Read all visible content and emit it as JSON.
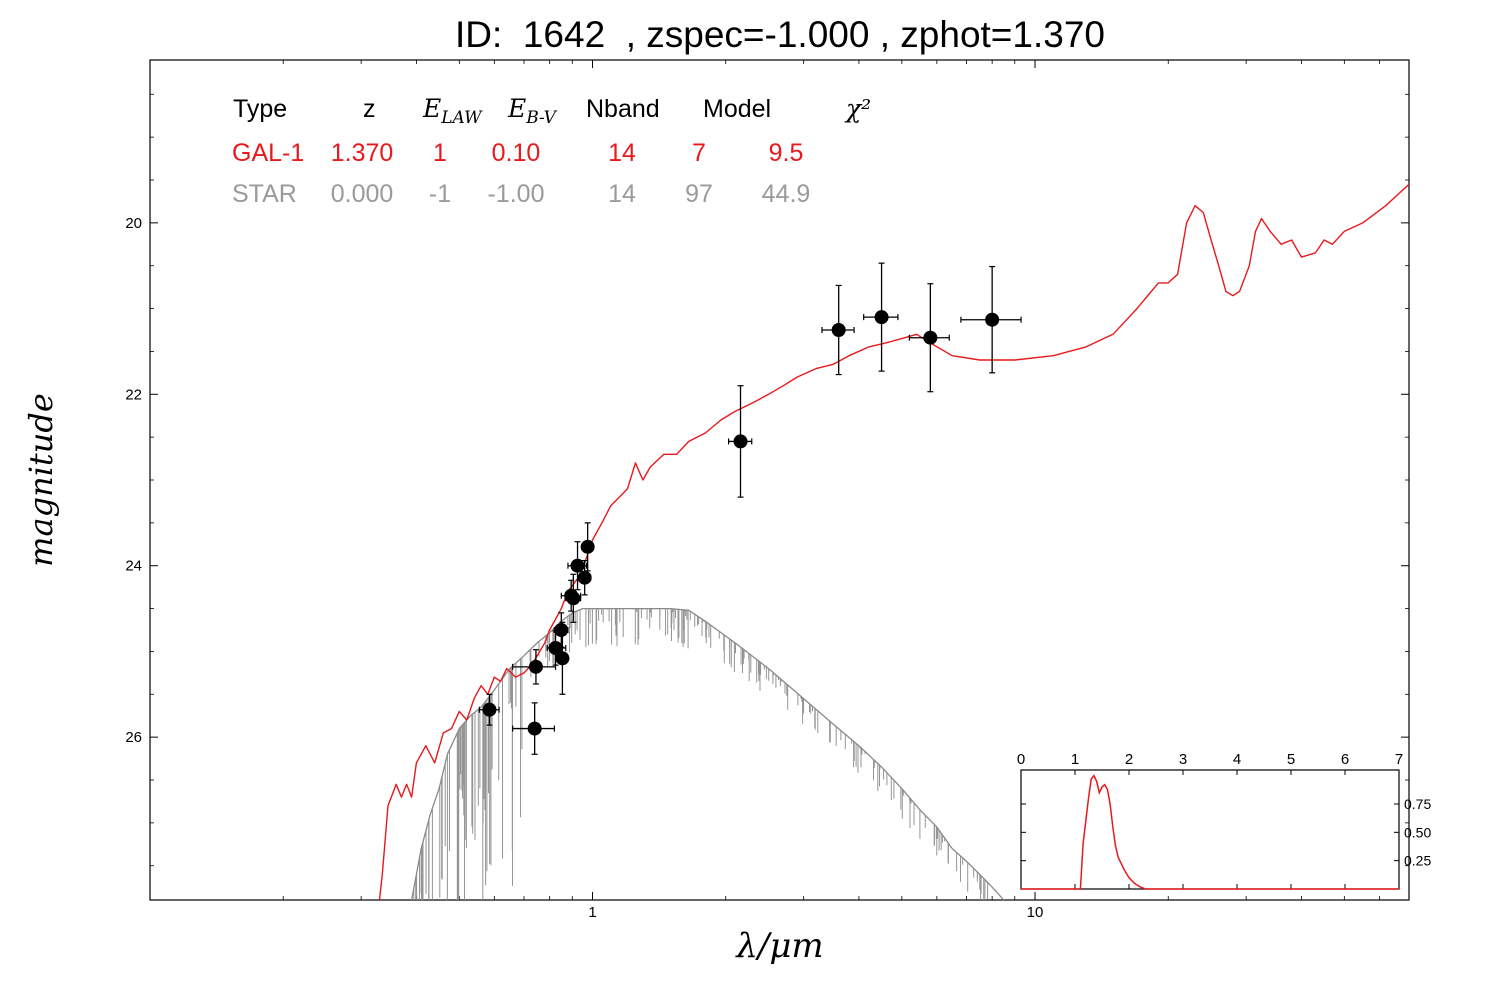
{
  "title": "ID:  1642  , zspec=-1.000 , zphot=1.370",
  "chart_data": {
    "type": "line",
    "xlabel": "λ/μm",
    "ylabel": "magnitude",
    "x_scale": "log",
    "y_inverted": true,
    "xlim": [
      0.1,
      70
    ],
    "ylim": [
      27.9,
      18.1
    ],
    "x_ticks": [
      {
        "value": 1,
        "label": "1"
      },
      {
        "value": 10,
        "label": "10"
      }
    ],
    "y_ticks": [
      {
        "value": 20,
        "label": "20"
      },
      {
        "value": 22,
        "label": "22"
      },
      {
        "value": 24,
        "label": "24"
      },
      {
        "value": 26,
        "label": "26"
      }
    ],
    "colors": {
      "galaxy": "#e8191c",
      "star": "#8a8a8a",
      "points": "#000000",
      "gal_text": "#e8191c",
      "star_text": "#9a9a9a"
    },
    "fit_table": {
      "headers": [
        "Type",
        "z",
        "E_LAW",
        "E_B-V",
        "Nband",
        "Model",
        "χ²"
      ],
      "rows": [
        {
          "type": "GAL-1",
          "z": "1.370",
          "law": "1",
          "ebv": "0.10",
          "nband": "14",
          "model": "7",
          "chi2": "9.5"
        },
        {
          "type": "STAR",
          "z": "0.000",
          "law": "-1",
          "ebv": "-1.00",
          "nband": "14",
          "model": "97",
          "chi2": "44.9"
        }
      ]
    },
    "series": [
      {
        "kind": "galaxy-template",
        "points": [
          [
            0.33,
            27.9
          ],
          [
            0.335,
            27.6
          ],
          [
            0.345,
            26.8
          ],
          [
            0.36,
            26.55
          ],
          [
            0.37,
            26.7
          ],
          [
            0.38,
            26.55
          ],
          [
            0.39,
            26.7
          ],
          [
            0.4,
            26.3
          ],
          [
            0.42,
            26.1
          ],
          [
            0.44,
            26.3
          ],
          [
            0.46,
            25.95
          ],
          [
            0.48,
            25.9
          ],
          [
            0.5,
            25.7
          ],
          [
            0.52,
            25.8
          ],
          [
            0.54,
            25.55
          ],
          [
            0.56,
            25.4
          ],
          [
            0.58,
            25.5
          ],
          [
            0.6,
            25.3
          ],
          [
            0.62,
            25.35
          ],
          [
            0.64,
            25.2
          ],
          [
            0.67,
            25.3
          ],
          [
            0.7,
            25.25
          ],
          [
            0.73,
            25.15
          ],
          [
            0.76,
            25.0
          ],
          [
            0.78,
            24.9
          ],
          [
            0.8,
            24.75
          ],
          [
            0.83,
            24.6
          ],
          [
            0.85,
            24.5
          ],
          [
            0.88,
            24.3
          ],
          [
            0.91,
            24.2
          ],
          [
            0.94,
            24.1
          ],
          [
            0.97,
            23.9
          ],
          [
            1.0,
            23.7
          ],
          [
            1.05,
            23.5
          ],
          [
            1.1,
            23.3
          ],
          [
            1.15,
            23.2
          ],
          [
            1.2,
            23.1
          ],
          [
            1.25,
            22.8
          ],
          [
            1.3,
            23.0
          ],
          [
            1.35,
            22.85
          ],
          [
            1.45,
            22.7
          ],
          [
            1.55,
            22.7
          ],
          [
            1.65,
            22.55
          ],
          [
            1.8,
            22.45
          ],
          [
            1.95,
            22.3
          ],
          [
            2.1,
            22.2
          ],
          [
            2.3,
            22.1
          ],
          [
            2.5,
            22.0
          ],
          [
            2.7,
            21.9
          ],
          [
            2.9,
            21.8
          ],
          [
            3.2,
            21.7
          ],
          [
            3.5,
            21.65
          ],
          [
            3.8,
            21.55
          ],
          [
            4.2,
            21.45
          ],
          [
            4.6,
            21.4
          ],
          [
            5.0,
            21.35
          ],
          [
            5.4,
            21.3
          ],
          [
            5.8,
            21.4
          ],
          [
            6.5,
            21.55
          ],
          [
            7.5,
            21.6
          ],
          [
            9.0,
            21.6
          ],
          [
            11.0,
            21.55
          ],
          [
            13.0,
            21.45
          ],
          [
            15.0,
            21.3
          ],
          [
            17.0,
            21.0
          ],
          [
            19.0,
            20.7
          ],
          [
            20.0,
            20.7
          ],
          [
            21.0,
            20.6
          ],
          [
            22.0,
            20.0
          ],
          [
            23.0,
            19.8
          ],
          [
            24.0,
            19.88
          ],
          [
            25.0,
            20.2
          ],
          [
            26.0,
            20.5
          ],
          [
            27.0,
            20.8
          ],
          [
            28.0,
            20.85
          ],
          [
            29.0,
            20.8
          ],
          [
            30.5,
            20.5
          ],
          [
            31.5,
            20.1
          ],
          [
            32.5,
            19.95
          ],
          [
            34.0,
            20.1
          ],
          [
            36.0,
            20.25
          ],
          [
            38.0,
            20.2
          ],
          [
            40.0,
            20.4
          ],
          [
            43.0,
            20.35
          ],
          [
            45.0,
            20.2
          ],
          [
            47.0,
            20.25
          ],
          [
            50.0,
            20.1
          ],
          [
            55.0,
            20.0
          ],
          [
            62.0,
            19.8
          ],
          [
            70.0,
            19.55
          ]
        ]
      },
      {
        "kind": "star-template",
        "points": [
          [
            0.39,
            27.9
          ],
          [
            0.41,
            27.3
          ],
          [
            0.43,
            26.9
          ],
          [
            0.45,
            26.6
          ],
          [
            0.47,
            26.2
          ],
          [
            0.5,
            25.9
          ],
          [
            0.53,
            25.75
          ],
          [
            0.56,
            25.65
          ],
          [
            0.6,
            25.45
          ],
          [
            0.65,
            25.2
          ],
          [
            0.7,
            25.05
          ],
          [
            0.75,
            24.9
          ],
          [
            0.8,
            24.78
          ],
          [
            0.85,
            24.65
          ],
          [
            0.9,
            24.55
          ],
          [
            0.95,
            24.5
          ],
          [
            1.0,
            24.5
          ],
          [
            1.2,
            24.5
          ],
          [
            1.5,
            24.5
          ],
          [
            1.65,
            24.52
          ],
          [
            1.8,
            24.65
          ],
          [
            2.1,
            24.9
          ],
          [
            2.5,
            25.2
          ],
          [
            3.0,
            25.55
          ],
          [
            3.5,
            25.85
          ],
          [
            4.0,
            26.1
          ],
          [
            4.5,
            26.35
          ],
          [
            5.0,
            26.6
          ],
          [
            5.5,
            26.85
          ],
          [
            6.0,
            27.05
          ],
          [
            6.5,
            27.3
          ],
          [
            7.0,
            27.45
          ],
          [
            7.5,
            27.6
          ],
          [
            8.0,
            27.75
          ],
          [
            8.5,
            27.9
          ]
        ]
      }
    ],
    "photometry": [
      {
        "x": 0.585,
        "y": 25.68,
        "xerr": [
          0.555,
          0.615
        ],
        "yerr": 0.18
      },
      {
        "x": 0.74,
        "y": 25.9,
        "xerr": [
          0.66,
          0.82
        ],
        "yerr": 0.3
      },
      {
        "x": 0.745,
        "y": 25.18,
        "xerr": [
          0.66,
          0.825
        ],
        "yerr": 0.2
      },
      {
        "x": 0.825,
        "y": 24.96,
        "xerr": [
          0.79,
          0.87
        ],
        "yerr": 0.2
      },
      {
        "x": 0.85,
        "y": 24.75,
        "xerr": [
          0.82,
          0.88
        ],
        "yerr": 0.2
      },
      {
        "x": 0.855,
        "y": 25.08,
        "xerr": [
          0.83,
          0.88
        ],
        "yerr": 0.42
      },
      {
        "x": 0.895,
        "y": 24.35,
        "xerr": [
          0.85,
          0.94
        ],
        "yerr": 0.18
      },
      {
        "x": 0.905,
        "y": 24.38,
        "xerr": [
          0.87,
          0.94
        ],
        "yerr": 0.28
      },
      {
        "x": 0.925,
        "y": 24.0,
        "xerr": [
          0.88,
          0.97
        ],
        "yerr": 0.28
      },
      {
        "x": 0.96,
        "y": 24.14,
        "xerr": [
          0.93,
          0.99
        ],
        "yerr": 0.2
      },
      {
        "x": 0.975,
        "y": 23.78,
        "xerr": [
          0.95,
          1.0
        ],
        "yerr": 0.28
      },
      {
        "x": 2.16,
        "y": 22.55,
        "xerr": [
          2.03,
          2.29
        ],
        "yerr": 0.65
      },
      {
        "x": 3.6,
        "y": 21.25,
        "xerr": [
          3.3,
          3.9
        ],
        "yerr": 0.52
      },
      {
        "x": 4.5,
        "y": 21.1,
        "xerr": [
          4.1,
          4.9
        ],
        "yerr": 0.63
      },
      {
        "x": 5.8,
        "y": 21.34,
        "xerr": [
          5.2,
          6.4
        ],
        "yerr": 0.63
      },
      {
        "x": 8.0,
        "y": 21.13,
        "xerr": [
          6.8,
          9.3
        ],
        "yerr": 0.62
      }
    ],
    "inset": {
      "type": "line",
      "description": "redshift probability distribution",
      "xlim": [
        0,
        7
      ],
      "ylim": [
        0,
        1.05
      ],
      "x_ticks": [
        "0",
        "1",
        "2",
        "3",
        "4",
        "5",
        "6",
        "7"
      ],
      "y_ticks": [
        "0.25",
        "0.50",
        "0.75"
      ],
      "y_tick_values": [
        0.25,
        0.5,
        0.75
      ],
      "points": [
        [
          0,
          0
        ],
        [
          1.1,
          0
        ],
        [
          1.15,
          0.4
        ],
        [
          1.2,
          0.6
        ],
        [
          1.25,
          0.8
        ],
        [
          1.3,
          0.97
        ],
        [
          1.35,
          1.0
        ],
        [
          1.4,
          0.95
        ],
        [
          1.45,
          0.85
        ],
        [
          1.5,
          0.9
        ],
        [
          1.55,
          0.92
        ],
        [
          1.6,
          0.88
        ],
        [
          1.65,
          0.75
        ],
        [
          1.7,
          0.55
        ],
        [
          1.75,
          0.38
        ],
        [
          1.8,
          0.28
        ],
        [
          1.9,
          0.18
        ],
        [
          2.0,
          0.1
        ],
        [
          2.1,
          0.05
        ],
        [
          2.2,
          0.02
        ],
        [
          2.3,
          0.0
        ],
        [
          7,
          0
        ]
      ]
    }
  }
}
